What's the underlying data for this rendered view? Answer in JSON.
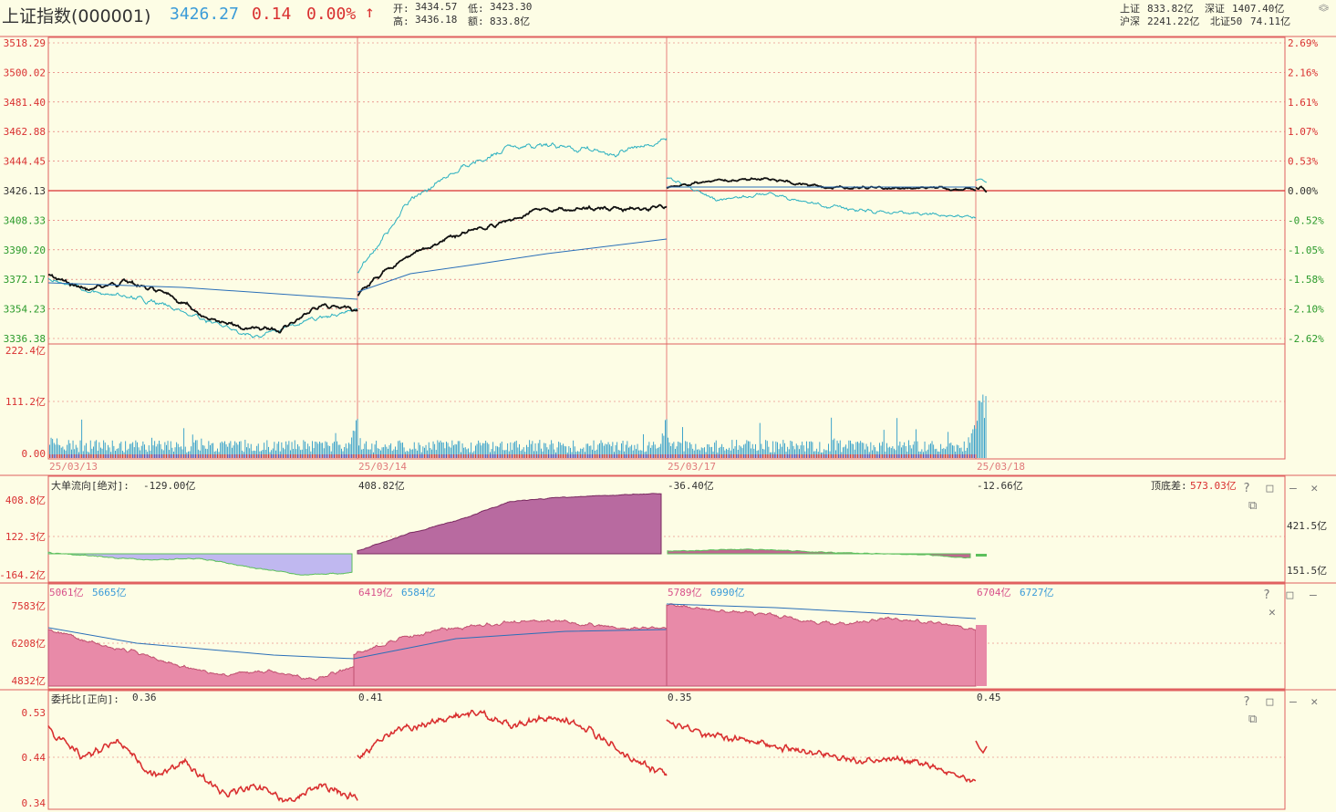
{
  "header": {
    "title": "上证指数(000001)",
    "price": "3426.27",
    "change": "0.14",
    "change_pct": "0.00%",
    "arrow": "↑",
    "open_label": "开:",
    "open": "3434.57",
    "low_label": "低:",
    "low": "3423.30",
    "high_label": "高:",
    "high": "3436.18",
    "amount_label": "额:",
    "amount": "833.8亿",
    "sh_label": "上证",
    "sh_amt": "833.82亿",
    "sz_label": "深证",
    "sz_amt": "1407.40亿",
    "hs_label": "沪深",
    "hs_amt": "2241.22亿",
    "bz_label": "北证50",
    "bz_amt": "74.11亿"
  },
  "colors": {
    "up": "#d93030",
    "down": "#2a9a2a",
    "blue": "#3a9bd8",
    "grid": "#e06060",
    "bg": "#fdfde5"
  },
  "dates": [
    "25/03/13",
    "25/03/14",
    "25/03/17",
    "25/03/18"
  ],
  "price_panel": {
    "y_left": [
      "3518.29",
      "3500.02",
      "3481.40",
      "3462.88",
      "3444.45",
      "3426.13",
      "3408.33",
      "3390.20",
      "3372.17",
      "3354.23",
      "3336.38"
    ],
    "y_right": [
      "2.69%",
      "2.16%",
      "1.61%",
      "1.07%",
      "0.53%",
      "0.00%",
      "-0.52%",
      "-1.05%",
      "-1.58%",
      "-2.10%",
      "-2.62%"
    ]
  },
  "volume_panel": {
    "y_labels": [
      "222.4亿",
      "111.2亿",
      "0.00"
    ]
  },
  "flow_panel": {
    "title": "大单流向[绝对]:",
    "values": [
      "-129.00亿",
      "408.82亿",
      "-36.40亿",
      "-12.66亿"
    ],
    "diff_label": "顶底差:",
    "diff_value": "573.03亿",
    "y_left": [
      "408.8亿",
      "122.3亿",
      "-164.2亿"
    ],
    "y_right": [
      "421.5亿",
      "151.5亿"
    ]
  },
  "amount_panel": {
    "pairs": [
      [
        "5061亿",
        "5665亿"
      ],
      [
        "6419亿",
        "6584亿"
      ],
      [
        "5789亿",
        "6990亿"
      ],
      [
        "6704亿",
        "6727亿"
      ]
    ],
    "y_left": [
      "7583亿",
      "6208亿",
      "4832亿"
    ]
  },
  "ratio_panel": {
    "title": "委托比[正向]:",
    "values": [
      "0.36",
      "0.41",
      "0.35",
      "0.45"
    ],
    "y_left": [
      "0.53",
      "0.44",
      "0.34"
    ]
  },
  "controls": {
    "help": "?",
    "max": "□",
    "min": "—",
    "close": "✕",
    "restore": "⧉"
  }
}
